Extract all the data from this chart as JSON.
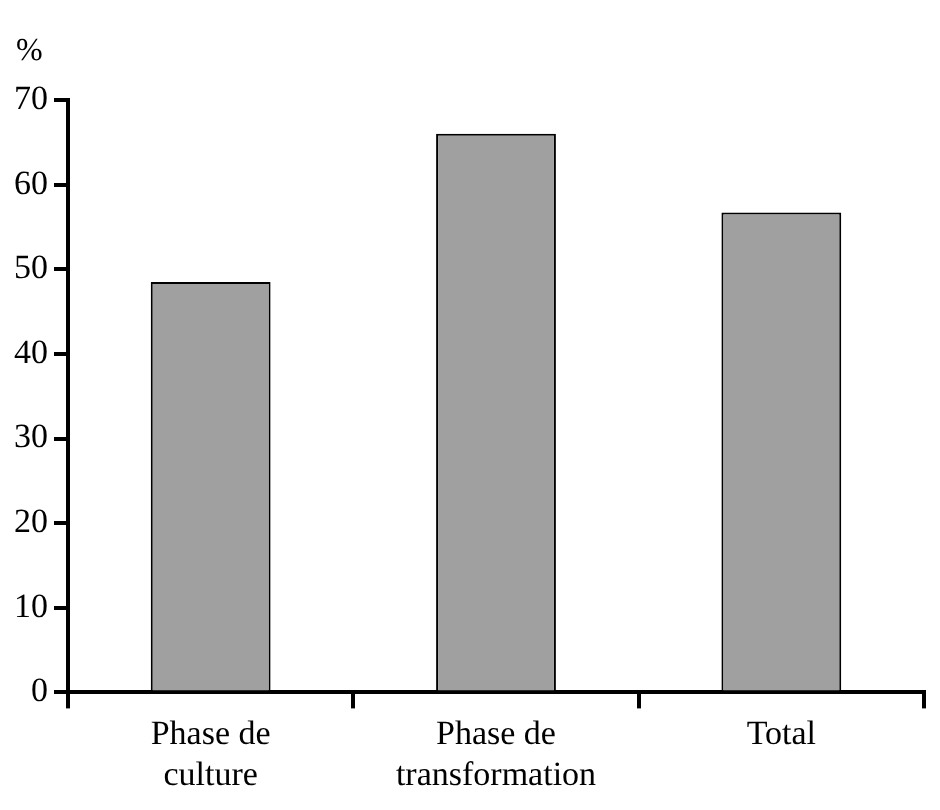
{
  "chart_data": {
    "type": "bar",
    "ylabel": "%",
    "categories": [
      "Phase de culture",
      "Phase de transformation",
      "Total"
    ],
    "values": [
      48.5,
      66,
      56.7
    ],
    "color": "#a0a0a0",
    "ylim": [
      0,
      70
    ],
    "yticks": [
      0,
      10,
      20,
      30,
      40,
      50,
      60,
      70
    ],
    "grid": false,
    "legend": false
  }
}
